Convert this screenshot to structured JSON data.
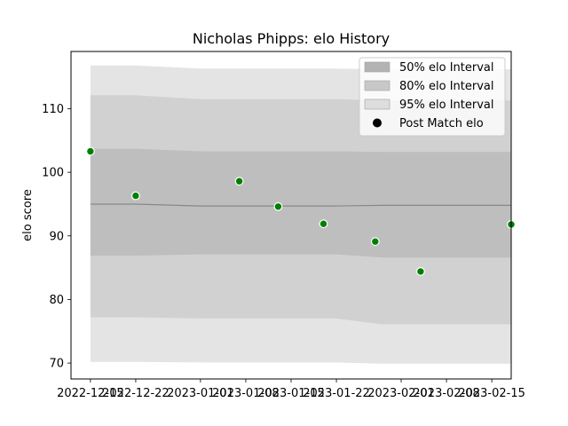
{
  "chart_data": {
    "type": "area",
    "title": "Nicholas Phipps: elo History",
    "xlabel": "",
    "ylabel": "elo score",
    "xlim": [
      "2022-12-12",
      "2023-02-18"
    ],
    "ylim": [
      67.5,
      119
    ],
    "x_ticks": [
      "2022-12-15",
      "2022-12-22",
      "2023-01-01",
      "2023-01-08",
      "2023-01-15",
      "2023-01-22",
      "2023-02-01",
      "2023-02-08",
      "2023-02-15"
    ],
    "x_tick_labels": [
      "2022-12-15",
      "2022-12-22",
      "2023-01-01",
      "2023-01-08",
      "2023-01-15",
      "2023-01-22",
      "2023-02-01",
      "2023-02-08",
      "2023-02-15"
    ],
    "y_ticks": [
      70,
      80,
      90,
      100,
      110
    ],
    "y_tick_labels": [
      "70",
      "80",
      "90",
      "100",
      "110"
    ],
    "x": [
      "2022-12-15",
      "2022-12-22",
      "2023-01-01",
      "2023-01-07",
      "2023-01-14",
      "2023-01-22",
      "2023-01-29",
      "2023-02-18"
    ],
    "mean": [
      95.0,
      95.0,
      94.7,
      94.7,
      94.7,
      94.7,
      94.8,
      94.8
    ],
    "bands": [
      {
        "name": "95% elo Interval",
        "color": "#e4e4e4",
        "lower": [
          70.2,
          70.2,
          70.1,
          70.1,
          70.1,
          70.1,
          69.9,
          69.9
        ],
        "upper": [
          116.8,
          116.8,
          116.3,
          116.3,
          116.3,
          116.3,
          116.2,
          116.2
        ]
      },
      {
        "name": "80% elo Interval",
        "color": "#d1d1d1",
        "lower": [
          77.2,
          77.2,
          77.0,
          77.0,
          77.0,
          77.0,
          76.1,
          76.1
        ],
        "upper": [
          112.1,
          112.1,
          111.5,
          111.5,
          111.5,
          111.5,
          111.3,
          111.3
        ]
      },
      {
        "name": "50% elo Interval",
        "color": "#bebebe",
        "lower": [
          86.9,
          86.9,
          87.1,
          87.1,
          87.1,
          87.1,
          86.6,
          86.6
        ],
        "upper": [
          103.7,
          103.7,
          103.3,
          103.3,
          103.3,
          103.3,
          103.2,
          103.2
        ]
      }
    ],
    "points": {
      "name": "Post Match elo",
      "color": "#007f00",
      "x": [
        "2022-12-15",
        "2022-12-22",
        "2023-01-07",
        "2023-01-13",
        "2023-01-20",
        "2023-01-28",
        "2023-02-04",
        "2023-02-18"
      ],
      "y": [
        103.3,
        96.3,
        98.6,
        94.6,
        91.9,
        89.1,
        84.4,
        91.8
      ]
    },
    "legend": {
      "position": "top-right",
      "entries": [
        {
          "label": "50% elo Interval",
          "kind": "patch",
          "color": "#b3b3b3"
        },
        {
          "label": "80% elo Interval",
          "kind": "patch",
          "color": "#c8c8c8"
        },
        {
          "label": "95% elo Interval",
          "kind": "patch",
          "color": "#dddddd"
        },
        {
          "label": "Post Match elo",
          "kind": "marker",
          "color": "#000000"
        }
      ]
    },
    "grid": false
  }
}
